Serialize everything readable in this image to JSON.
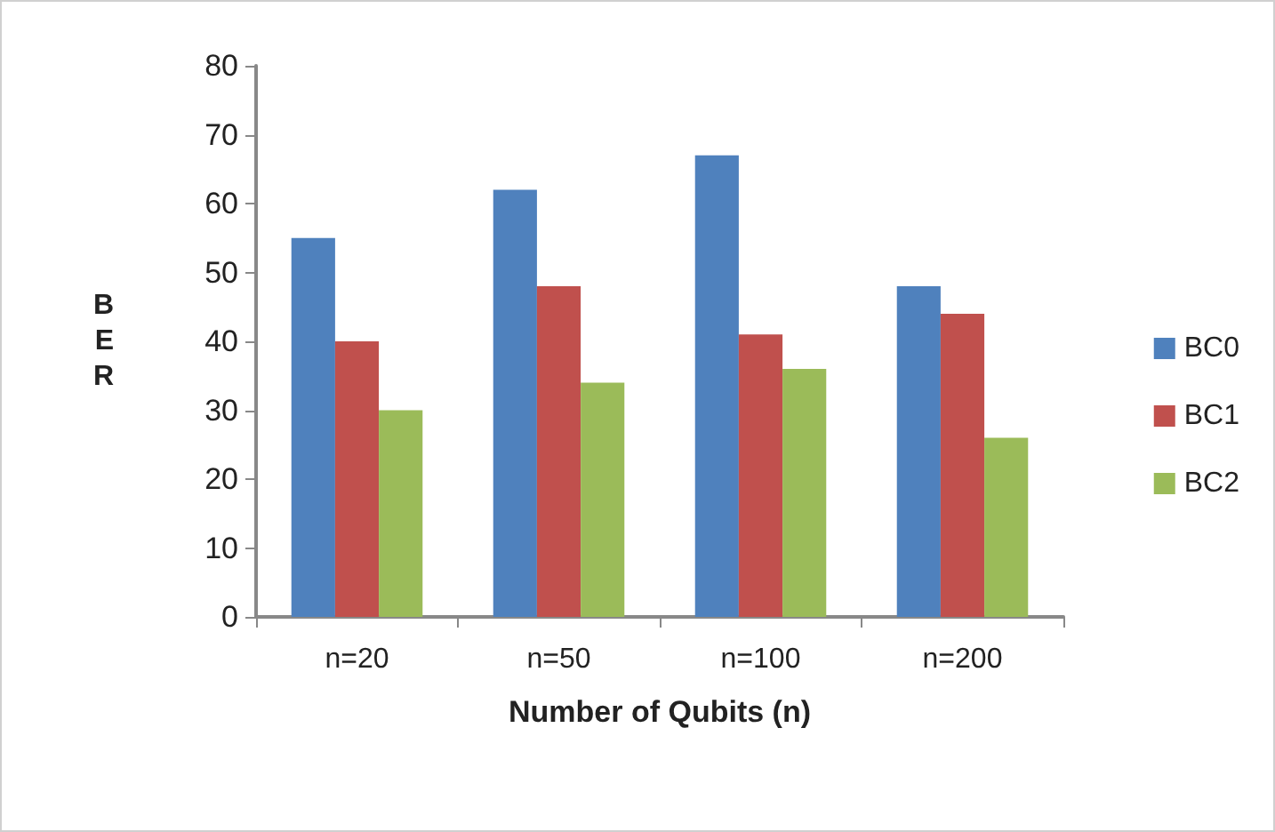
{
  "chart_data": {
    "type": "bar",
    "xlabel": "Number of Qubits (n)",
    "ylabel": "BER",
    "categories": [
      "n=20",
      "n=50",
      "n=100",
      "n=200"
    ],
    "series": [
      {
        "name": "BC0",
        "color": "#4f81bd",
        "values": [
          55,
          62,
          67,
          48
        ]
      },
      {
        "name": "BC1",
        "color": "#c0504d",
        "values": [
          40,
          48,
          41,
          44
        ]
      },
      {
        "name": "BC2",
        "color": "#9bbb59",
        "values": [
          30,
          34,
          36,
          26
        ]
      }
    ],
    "ylim": [
      0,
      80
    ],
    "yticks": [
      0,
      10,
      20,
      30,
      40,
      50,
      60,
      70,
      80
    ],
    "grid": false,
    "legend": "right"
  }
}
